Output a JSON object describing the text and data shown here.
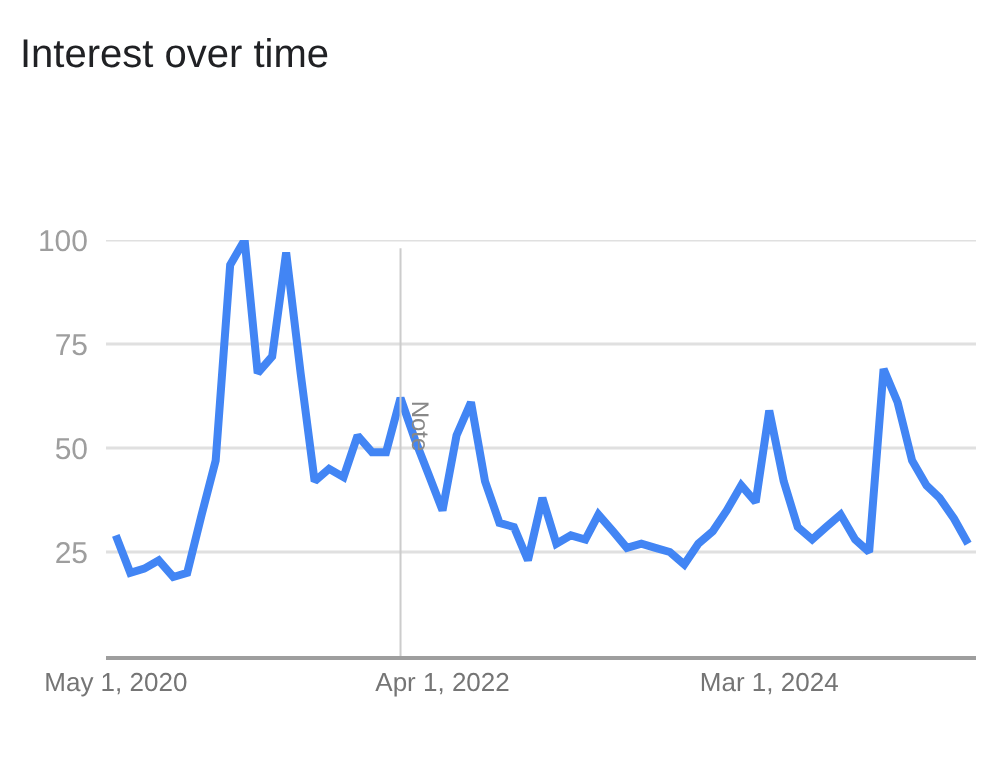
{
  "chart_data": {
    "type": "line",
    "title": "Interest over time",
    "x": [
      "2020-05",
      "2020-06",
      "2020-07",
      "2020-08",
      "2020-09",
      "2020-10",
      "2020-11",
      "2020-12",
      "2021-01",
      "2021-02",
      "2021-03",
      "2021-04",
      "2021-05",
      "2021-06",
      "2021-07",
      "2021-08",
      "2021-09",
      "2021-10",
      "2021-11",
      "2021-12",
      "2022-01",
      "2022-02",
      "2022-03",
      "2022-04",
      "2022-05",
      "2022-06",
      "2022-07",
      "2022-08",
      "2022-09",
      "2022-10",
      "2022-11",
      "2022-12",
      "2023-01",
      "2023-02",
      "2023-03",
      "2023-04",
      "2023-05",
      "2023-06",
      "2023-07",
      "2023-08",
      "2023-09",
      "2023-10",
      "2023-11",
      "2023-12",
      "2024-01",
      "2024-02",
      "2024-03",
      "2024-04",
      "2024-05",
      "2024-06",
      "2024-07",
      "2024-08",
      "2024-09",
      "2024-10",
      "2024-11",
      "2024-12",
      "2025-01",
      "2025-02",
      "2025-03",
      "2025-04",
      "2025-05"
    ],
    "series": [
      {
        "color": "#4285f4",
        "values": [
          29,
          20,
          21,
          23,
          19,
          20,
          34,
          47,
          94,
          100,
          68,
          72,
          97,
          68,
          42,
          45,
          43,
          53,
          49,
          49,
          62,
          52,
          44,
          35,
          53,
          61,
          42,
          32,
          31,
          23,
          38,
          27,
          29,
          28,
          34,
          30,
          26,
          27,
          26,
          25,
          22,
          27,
          30,
          35,
          41,
          37,
          59,
          42,
          31,
          28,
          31,
          34,
          28,
          25,
          69,
          61,
          47,
          41,
          38,
          33,
          27
        ]
      }
    ],
    "xlim": [
      "2020-04-10",
      "2025-05-18"
    ],
    "xticks": [
      {
        "value": "2020-05-01",
        "label": "May 1, 2020"
      },
      {
        "value": "2022-04-01",
        "label": "Apr 1, 2022"
      },
      {
        "value": "2024-03-01",
        "label": "Mar 1, 2024"
      }
    ],
    "ylim": [
      0,
      100
    ],
    "yticks": [
      25,
      50,
      75,
      100
    ],
    "grid": "y",
    "marker": "none",
    "line_style": "solid",
    "ref_lines": [
      {
        "axis": "x",
        "value": "2022-01-01",
        "label": "Note",
        "color": "#cccccc"
      }
    ]
  }
}
